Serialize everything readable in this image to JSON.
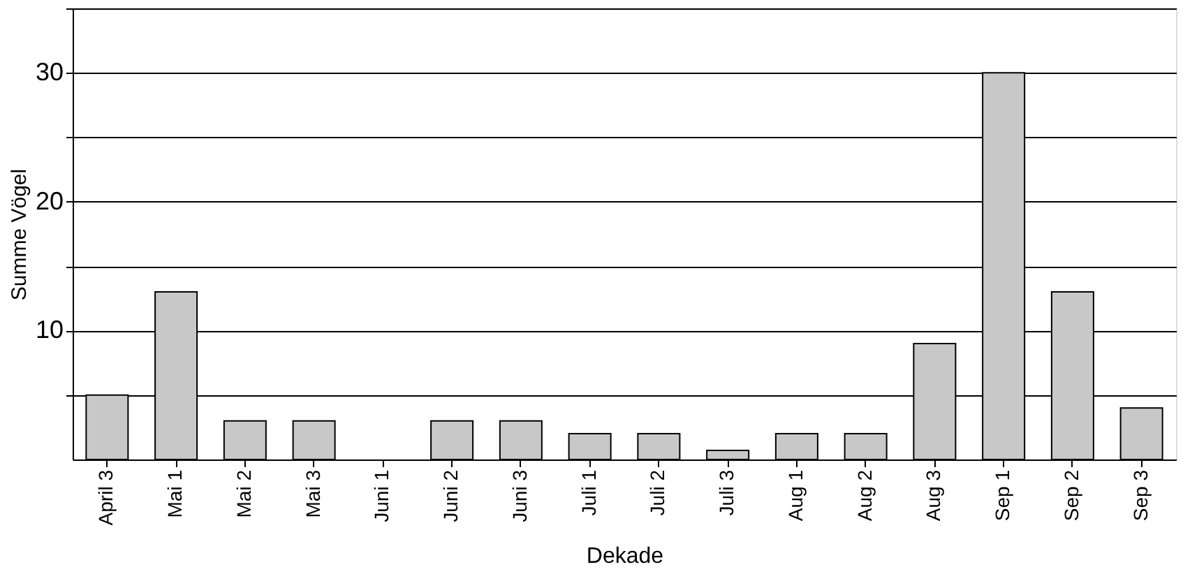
{
  "chart_data": {
    "type": "bar",
    "xlabel": "Dekade",
    "ylabel": "Summe Vögel",
    "categories": [
      "April 3",
      "Mai 1",
      "Mai 2",
      "Mai 3",
      "Juni 1",
      "Juni 2",
      "Juni 3",
      "Juli 1",
      "Juli 2",
      "Juli 3",
      "Aug 1",
      "Aug 2",
      "Aug 3",
      "Sep 1",
      "Sep 2",
      "Sep 3"
    ],
    "values": [
      5,
      13,
      3,
      3,
      0,
      3,
      3,
      2,
      2,
      0.7,
      2,
      2,
      9,
      30,
      13,
      4
    ],
    "color": "#c8c8c8",
    "ylim": [
      0,
      35
    ],
    "yticks": [
      {
        "value": 5,
        "label": null
      },
      10,
      {
        "value": 15,
        "label": null
      },
      20,
      {
        "value": 25,
        "label": null
      },
      30,
      {
        "value": 35,
        "label": null
      }
    ],
    "grid": "y"
  }
}
